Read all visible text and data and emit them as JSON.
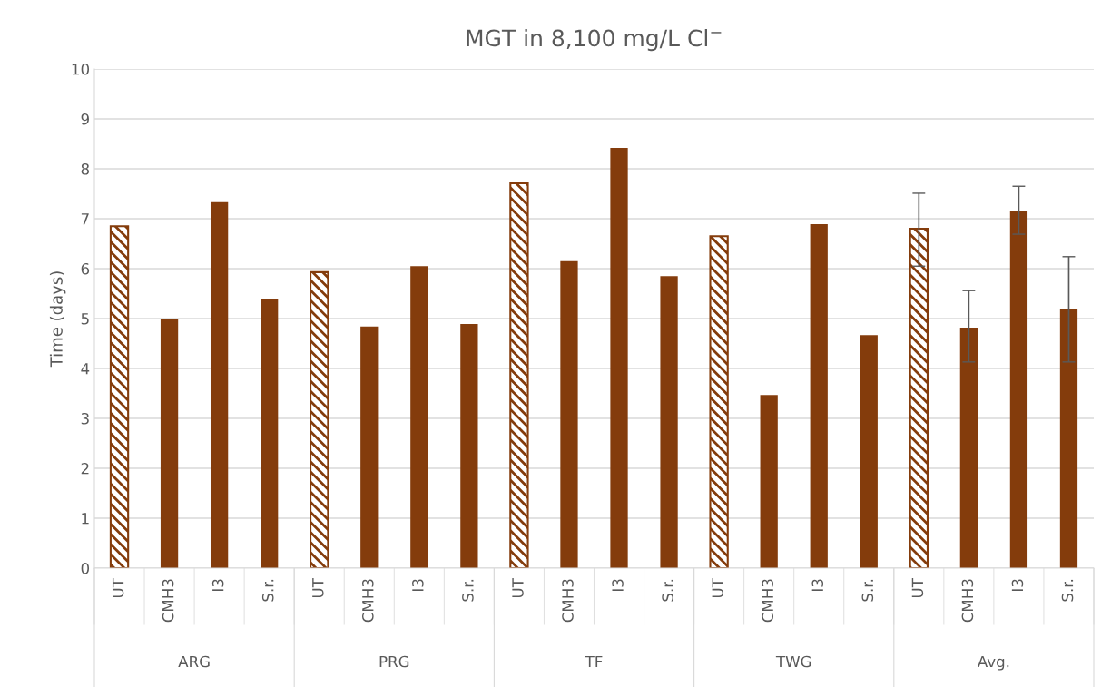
{
  "chart_data": {
    "type": "bar",
    "title": "MGT in 8,100 mg/L Cl$^{−}$",
    "ylabel": "Time (days)",
    "categories": [
      "UT",
      "CMH3",
      "I3",
      "S.r.",
      "UT",
      "CMH3",
      "I3",
      "S.r.",
      "UT",
      "CMH3",
      "I3",
      "S.r.",
      "UT",
      "CMH3",
      "I3",
      "S.r.",
      "UT",
      "CMH3",
      "I3",
      "S.r."
    ],
    "annotations": [
      "ARG",
      "PRG",
      "TF",
      "TWG",
      "Avg."
    ],
    "series": [
      {
        "color": "#843c0c",
        "values": [
          6.85,
          null,
          null,
          null,
          5.93,
          null,
          null,
          null,
          7.71,
          null,
          null,
          null,
          6.65,
          null,
          null,
          null,
          6.8,
          null,
          null,
          null
        ],
        "errors": [
          null,
          null,
          null,
          null,
          null,
          null,
          null,
          null,
          null,
          null,
          null,
          null,
          null,
          null,
          null,
          null,
          [
            6.05,
            7.51
          ],
          null,
          null,
          null
        ]
      },
      {
        "color": "#843c0c",
        "values": [
          null,
          5.0,
          7.33,
          5.38,
          null,
          4.84,
          6.05,
          4.89,
          null,
          6.15,
          8.42,
          5.85,
          null,
          3.47,
          6.89,
          4.67,
          null,
          4.82,
          7.16,
          5.18
        ],
        "errors": [
          null,
          null,
          null,
          null,
          null,
          null,
          null,
          null,
          null,
          null,
          null,
          null,
          null,
          null,
          null,
          null,
          null,
          [
            4.13,
            5.56
          ],
          [
            6.69,
            7.65
          ],
          [
            4.13,
            6.24
          ]
        ]
      }
    ],
    "ylim": [
      0,
      10
    ],
    "yticks": [
      0,
      1,
      2,
      3,
      4,
      5,
      6,
      7,
      8,
      9,
      10
    ],
    "grid": "y",
    "legend": false
  }
}
